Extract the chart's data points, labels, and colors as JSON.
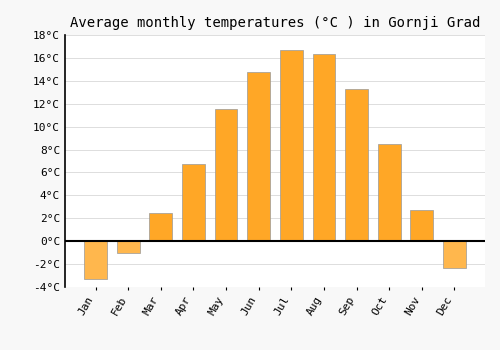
{
  "title": "Average monthly temperatures (°C ) in Gornji Grad",
  "months": [
    "Jan",
    "Feb",
    "Mar",
    "Apr",
    "May",
    "Jun",
    "Jul",
    "Aug",
    "Sep",
    "Oct",
    "Nov",
    "Dec"
  ],
  "values": [
    -3.3,
    -1.0,
    2.5,
    6.7,
    11.5,
    14.8,
    16.7,
    16.3,
    13.3,
    8.5,
    2.7,
    -2.3
  ],
  "bar_color_positive": "#FFA726",
  "bar_color_negative": "#FFB74D",
  "bar_edge_color": "#999999",
  "background_color": "#F8F8F8",
  "plot_bg_color": "#FFFFFF",
  "grid_color": "#DDDDDD",
  "ylim": [
    -4,
    18
  ],
  "yticks": [
    -4,
    -2,
    0,
    2,
    4,
    6,
    8,
    10,
    12,
    14,
    16,
    18
  ],
  "ytick_labels": [
    "-4°C",
    "-2°C",
    "0°C",
    "2°C",
    "4°C",
    "6°C",
    "8°C",
    "10°C",
    "12°C",
    "14°C",
    "16°C",
    "18°C"
  ],
  "title_fontsize": 10,
  "tick_fontsize": 8,
  "font_family": "monospace",
  "bar_width": 0.7
}
